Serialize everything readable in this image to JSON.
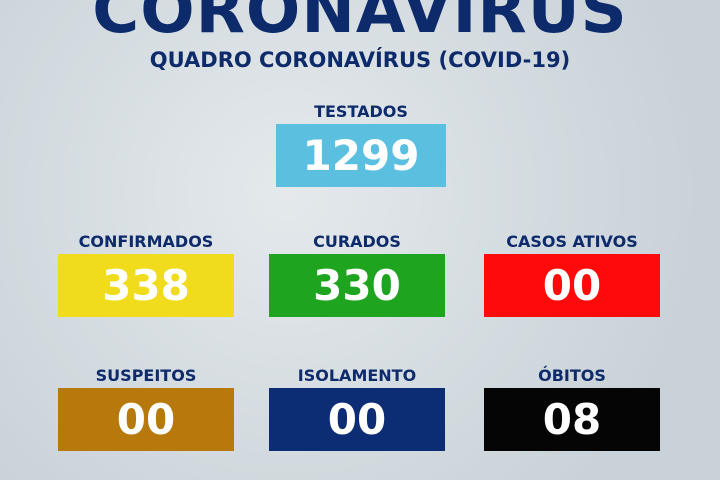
{
  "header": {
    "title": "CORONAVIRUS",
    "subtitle": "QUADRO CORONAVÍRUS (COVID-19)"
  },
  "stats": [
    {
      "label": "TESTADOS",
      "value": "1299",
      "color": "#5bbfe0"
    },
    {
      "label": "CONFIRMADOS",
      "value": "338",
      "color": "#f0dc1c"
    },
    {
      "label": "CURADOS",
      "value": "330",
      "color": "#1fa41f"
    },
    {
      "label": "CASOS ATIVOS",
      "value": "00",
      "color": "#ff0a0a"
    },
    {
      "label": "SUSPEITOS",
      "value": "00",
      "color": "#b7790c"
    },
    {
      "label": "ISOLAMENTO",
      "value": "00",
      "color": "#0c2d74"
    },
    {
      "label": "ÓBITOS",
      "value": "08",
      "color": "#050505"
    }
  ]
}
